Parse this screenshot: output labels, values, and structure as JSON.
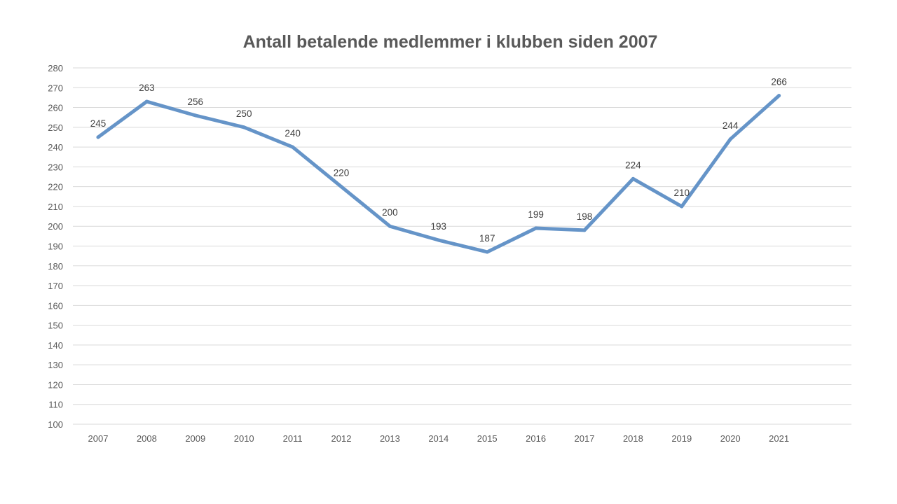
{
  "chart_data": {
    "type": "line",
    "title": "Antall betalende medlemmer i klubben siden 2007",
    "xlabel": "",
    "ylabel": "",
    "categories": [
      "2007",
      "2008",
      "2009",
      "2010",
      "2011",
      "2012",
      "2013",
      "2014",
      "2015",
      "2016",
      "2017",
      "2018",
      "2019",
      "2020",
      "2021"
    ],
    "series": [
      {
        "values": [
          245,
          263,
          256,
          250,
          240,
          220,
          200,
          193,
          187,
          199,
          198,
          224,
          210,
          244,
          266
        ],
        "data_labels": [
          "245",
          "263",
          "256",
          "250",
          "240",
          "220",
          "200",
          "193",
          "187",
          "199",
          "198",
          "224",
          "210",
          "244",
          "266"
        ],
        "color": "#6594c8"
      }
    ],
    "ylim": [
      100,
      280
    ],
    "yticks": [
      "100",
      "110",
      "120",
      "130",
      "140",
      "150",
      "160",
      "170",
      "180",
      "190",
      "200",
      "210",
      "220",
      "230",
      "240",
      "250",
      "260",
      "270",
      "280"
    ],
    "grid": true,
    "legend": "none"
  }
}
